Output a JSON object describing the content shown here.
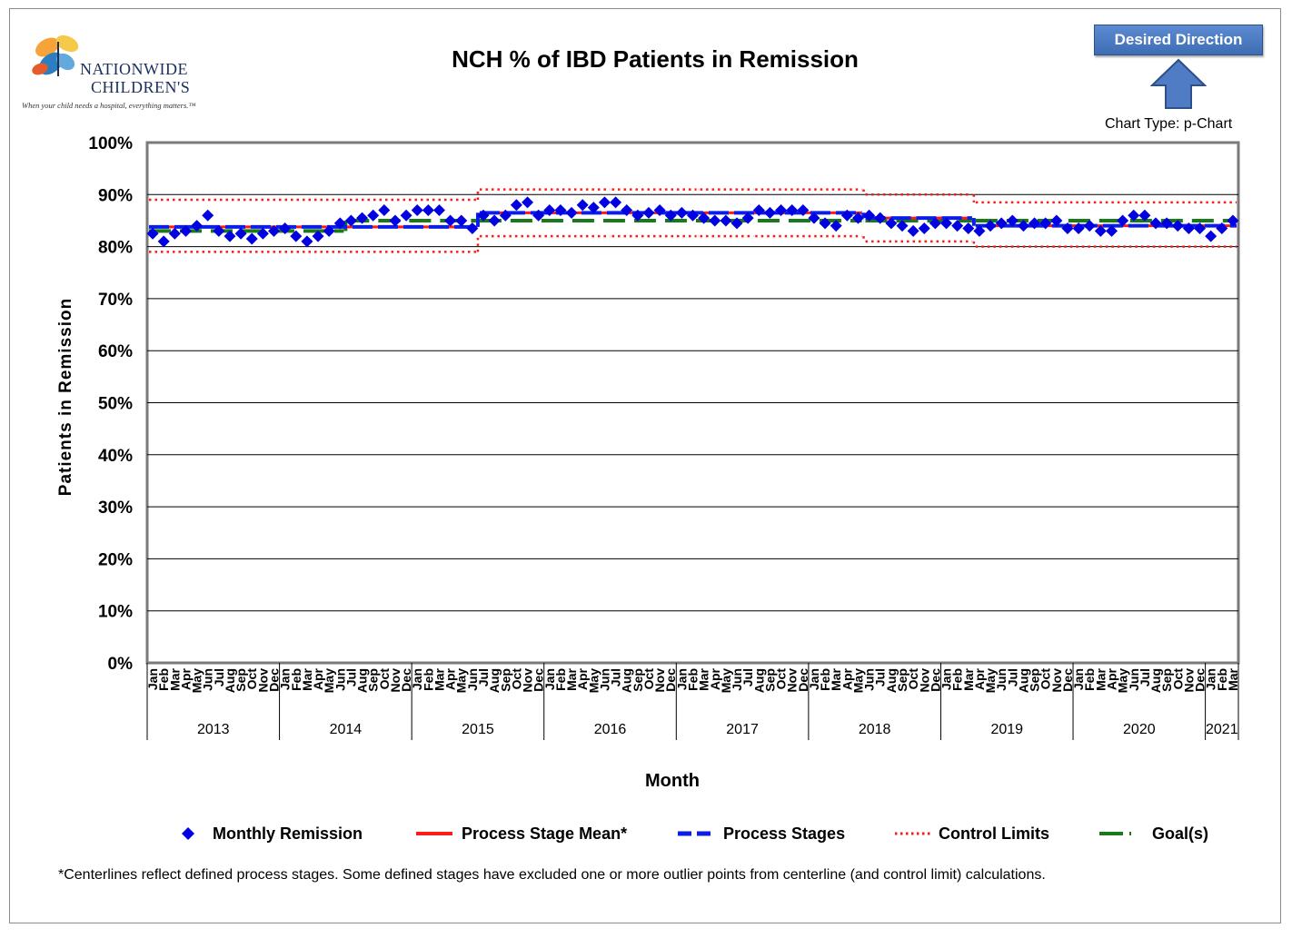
{
  "logo": {
    "name_line1": "NATIONWIDE",
    "name_line2": "CHILDREN'S",
    "tagline": "When your child needs a hospital, everything matters.™"
  },
  "desired_direction": {
    "label": "Desired Direction",
    "icon": "arrow-up-icon"
  },
  "chart_type_label": "Chart Type: p-Chart",
  "colors": {
    "monthly": "#0000e0",
    "mean": "#ff1a1a",
    "stages": "#0a1ee6",
    "limits": "#ff1a1a",
    "goal": "#1a7a1a",
    "button": "#4f7cc4"
  },
  "legend": [
    {
      "label": "Monthly Remission",
      "icon": "diamond-marker"
    },
    {
      "label": "Process Stage Mean*",
      "icon": "red-solid-line"
    },
    {
      "label": "Process Stages",
      "icon": "blue-dashed-line"
    },
    {
      "label": "Control Limits",
      "icon": "red-dotted-line"
    },
    {
      "label": "Goal(s)",
      "icon": "green-dash-dot-line"
    }
  ],
  "footnote": "*Centerlines reflect defined process stages. Some defined stages have excluded one or more outlier points from centerline (and control limit) calculations.",
  "chart_data": {
    "type": "line",
    "title": "NCH % of IBD Patients in Remission",
    "xlabel": "Month",
    "ylabel": "Patients in Remission",
    "ylim": [
      0,
      100
    ],
    "yticks": [
      "0%",
      "10%",
      "20%",
      "30%",
      "40%",
      "50%",
      "60%",
      "70%",
      "80%",
      "90%",
      "100%"
    ],
    "grid": true,
    "legend_position": "bottom",
    "month_labels": [
      "Jan",
      "Feb",
      "Mar",
      "Apr",
      "May",
      "Jun",
      "Jul",
      "Aug",
      "Sep",
      "Oct",
      "Nov",
      "Dec"
    ],
    "year_groups": [
      {
        "year": "2013",
        "months": 12
      },
      {
        "year": "2014",
        "months": 12
      },
      {
        "year": "2015",
        "months": 12
      },
      {
        "year": "2016",
        "months": 12
      },
      {
        "year": "2017",
        "months": 12
      },
      {
        "year": "2018",
        "months": 12
      },
      {
        "year": "2019",
        "months": 12
      },
      {
        "year": "2020",
        "months": 12
      },
      {
        "year": "2021",
        "months": 3
      }
    ],
    "series": [
      {
        "name": "Monthly Remission",
        "values": [
          82.5,
          81,
          82.5,
          83,
          84,
          86,
          83,
          82,
          82.5,
          81.5,
          82.5,
          83,
          83.5,
          82,
          81,
          82,
          83,
          84.5,
          85,
          85.5,
          86,
          87,
          85,
          86,
          87,
          87,
          87,
          85,
          85,
          83.5,
          86,
          85,
          86,
          88,
          88.5,
          86,
          87,
          87,
          86.5,
          88,
          87.5,
          88.5,
          88.5,
          87,
          86,
          86.5,
          87,
          86,
          86.5,
          86,
          85.5,
          85,
          85,
          84.5,
          85.5,
          87,
          86.5,
          87,
          87,
          87,
          85.5,
          84.5,
          84,
          86,
          85.5,
          86,
          85.5,
          84.5,
          84,
          83,
          83.5,
          84.5,
          84.5,
          84,
          83.5,
          83,
          84,
          84.5,
          85,
          84,
          84.5,
          84.5,
          85,
          83.5,
          83.5,
          84,
          83,
          83,
          85,
          86,
          86,
          84.5,
          84.5,
          84,
          83.5,
          83.5,
          82,
          83.5,
          85
        ]
      },
      {
        "name": "Process Stage Mean*",
        "segments": [
          {
            "start": 0,
            "end": 29,
            "value": 83.8
          },
          {
            "start": 30,
            "end": 64,
            "value": 86.5
          },
          {
            "start": 65,
            "end": 74,
            "value": 85.5
          },
          {
            "start": 75,
            "end": 98,
            "value": 84
          }
        ]
      },
      {
        "name": "Process Stages",
        "segments": [
          {
            "start": 0,
            "end": 29,
            "value": 83.8
          },
          {
            "start": 30,
            "end": 64,
            "value": 86.5
          },
          {
            "start": 65,
            "end": 74,
            "value": 85.5
          },
          {
            "start": 75,
            "end": 98,
            "value": 84
          }
        ]
      },
      {
        "name": "Control Limits",
        "upper": [
          {
            "start": 0,
            "end": 29,
            "value": 89
          },
          {
            "start": 30,
            "end": 41,
            "value": 91
          },
          {
            "start": 42,
            "end": 49,
            "value": 91
          },
          {
            "start": 50,
            "end": 54,
            "value": 91
          },
          {
            "start": 55,
            "end": 64,
            "value": 91
          },
          {
            "start": 65,
            "end": 74,
            "value": 90
          },
          {
            "start": 75,
            "end": 98,
            "value": 88.5
          }
        ],
        "lower": [
          {
            "start": 0,
            "end": 29,
            "value": 79
          },
          {
            "start": 30,
            "end": 41,
            "value": 82
          },
          {
            "start": 42,
            "end": 49,
            "value": 82
          },
          {
            "start": 50,
            "end": 54,
            "value": 82
          },
          {
            "start": 55,
            "end": 64,
            "value": 82
          },
          {
            "start": 65,
            "end": 74,
            "value": 81
          },
          {
            "start": 75,
            "end": 98,
            "value": 80
          }
        ]
      },
      {
        "name": "Goal(s)",
        "segments": [
          {
            "start": 0,
            "end": 17,
            "value": 83
          },
          {
            "start": 18,
            "end": 29,
            "value": 85
          },
          {
            "start": 30,
            "end": 64,
            "value": 85
          },
          {
            "start": 65,
            "end": 74,
            "value": 85
          },
          {
            "start": 75,
            "end": 98,
            "value": 85
          }
        ]
      }
    ]
  }
}
